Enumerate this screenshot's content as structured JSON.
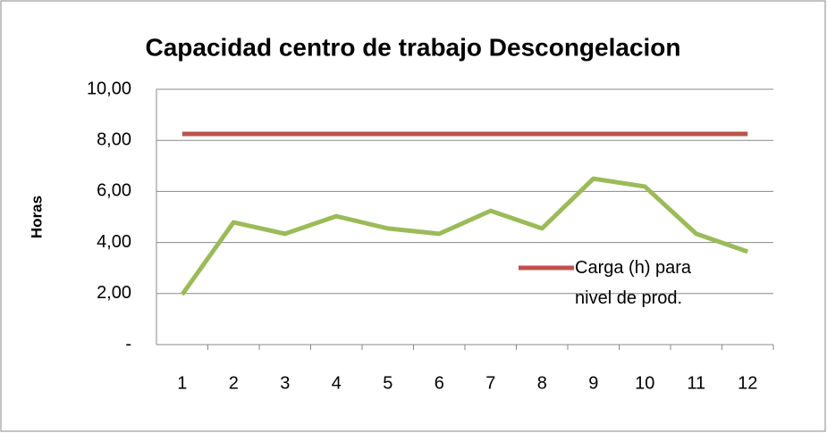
{
  "chart_data": {
    "type": "line",
    "title": "Capacidad centro de trabajo Descongelacion",
    "y_label": "Horas",
    "categories": [
      "1",
      "2",
      "3",
      "4",
      "5",
      "6",
      "7",
      "8",
      "9",
      "10",
      "11",
      "12"
    ],
    "series": [
      {
        "name": "Carga (h) para nivel de prod.",
        "color": "#c0504d",
        "values": [
          8.25,
          8.25,
          8.25,
          8.25,
          8.25,
          8.25,
          8.25,
          8.25,
          8.25,
          8.25,
          8.25,
          8.25
        ]
      },
      {
        "color": "#9bbb59",
        "values": [
          1.96,
          4.79,
          4.34,
          5.03,
          4.55,
          4.34,
          5.24,
          4.55,
          6.5,
          6.19,
          4.34,
          3.64
        ]
      }
    ],
    "ylim": [
      0,
      10
    ],
    "yticks": [
      {
        "value": 0,
        "label": "-"
      },
      {
        "value": 2,
        "label": "2,00"
      },
      {
        "value": 4,
        "label": "4,00"
      },
      {
        "value": 6,
        "label": "6,00"
      },
      {
        "value": 8,
        "label": "8,00"
      },
      {
        "value": 10,
        "label": "10,00"
      }
    ],
    "grid": true
  }
}
